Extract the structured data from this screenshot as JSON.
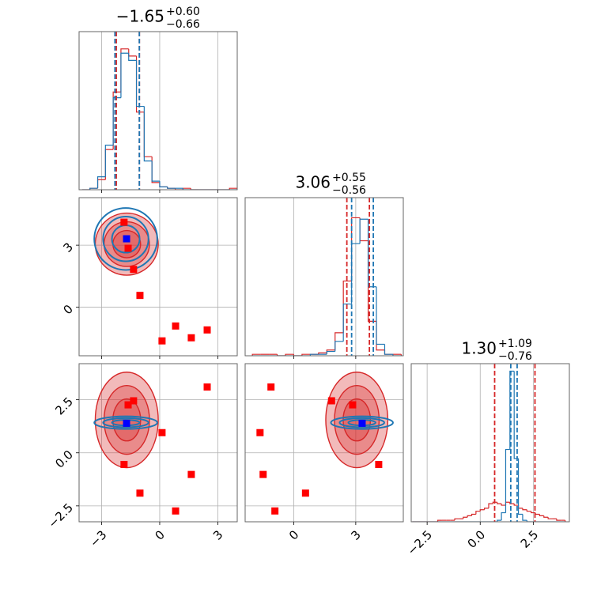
{
  "chart_data": {
    "type": "corner",
    "grid": true,
    "params": [
      {
        "title": {
          "value": "−1.65",
          "plus": "+0.60",
          "minus": "−0.66"
        },
        "lim": [
          -4.16,
          4.0
        ],
        "ticks": [
          {
            "value": -3,
            "label": "−3"
          },
          0,
          3
        ],
        "bins": [
          -4,
          -3.6,
          -3.2,
          -2.8,
          -2.4,
          -2,
          -1.6,
          -1.2,
          -0.8,
          -0.4,
          0,
          0.4,
          0.8,
          1.2,
          1.6,
          2,
          2.4,
          2.8,
          3.2,
          3.6,
          4
        ],
        "hist_ylim": [
          0,
          110
        ]
      },
      {
        "title": {
          "value": "3.06",
          "plus": "+0.55",
          "minus": "−0.56"
        },
        "lim": [
          -2.35,
          5.3
        ],
        "ticks": [
          0,
          3
        ],
        "bins": [
          -2,
          -1.6,
          -1.2,
          -0.8,
          -0.4,
          0,
          0.4,
          0.8,
          1.2,
          1.6,
          2,
          2.4,
          2.8,
          3.2,
          3.6,
          4,
          4.4,
          4.8,
          5.2
        ],
        "hist_ylim": [
          0,
          110
        ]
      },
      {
        "title": {
          "value": "1.30",
          "plus": "+1.09",
          "minus": "−0.76"
        },
        "lim": [
          -3.25,
          4.2
        ],
        "ticks": [
          {
            "value": -2.5,
            "label": "−2.5"
          },
          {
            "value": 0,
            "label": "0.0"
          },
          {
            "value": 2.5,
            "label": "2.5"
          }
        ],
        "bins": [
          -3.2,
          -3,
          -2.8,
          -2.6,
          -2.4,
          -2.2,
          -2,
          -1.8,
          -1.6,
          -1.4,
          -1.2,
          -1,
          -0.8,
          -0.6,
          -0.4,
          -0.2,
          0,
          0.2,
          0.4,
          0.6,
          0.8,
          1,
          1.2,
          1.4,
          1.6,
          1.8,
          2,
          2.2,
          2.4,
          2.6,
          2.8,
          3,
          3.2,
          3.4,
          3.6,
          3.8,
          4
        ],
        "hist_ylim": [
          0,
          105
        ]
      }
    ],
    "series": [
      {
        "color": "#d62728",
        "filled": true,
        "hist": [
          [
            0,
            1,
            7,
            28,
            68,
            98,
            93,
            54,
            23,
            5,
            2,
            1,
            0,
            1,
            0,
            0,
            0,
            0,
            0,
            1
          ],
          [
            1,
            1,
            1,
            0,
            1,
            0,
            1,
            1,
            2,
            4,
            16,
            52,
            96,
            80,
            24,
            4,
            1,
            1
          ],
          [
            0,
            0,
            0,
            0,
            0,
            0,
            1,
            1,
            1,
            1,
            2,
            2,
            3,
            4,
            5,
            7,
            8,
            9,
            12,
            13,
            12,
            11,
            13,
            12,
            11,
            9,
            8,
            7,
            6,
            5,
            4,
            3,
            2,
            2,
            1,
            1
          ]
        ],
        "quantiles": [
          [
            -2.24,
            -1.05
          ],
          [
            2.57,
            3.66
          ],
          [
            0.68,
            2.58
          ]
        ],
        "mean": [
          -1.7,
          3.05,
          1.55
        ],
        "std": [
          0.65,
          0.6,
          0.9
        ]
      },
      {
        "color": "#1f77b4",
        "filled": false,
        "hist": [
          [
            0,
            1,
            9,
            31,
            64,
            95,
            90,
            58,
            20,
            6,
            2,
            1,
            1,
            0,
            0,
            0,
            0,
            0,
            0,
            0
          ],
          [
            0,
            0,
            0,
            0,
            0,
            0,
            0,
            1,
            1,
            3,
            10,
            36,
            78,
            95,
            48,
            8,
            1,
            0
          ],
          [
            0,
            0,
            0,
            0,
            0,
            0,
            0,
            0,
            0,
            0,
            0,
            0,
            0,
            0,
            0,
            0,
            0,
            0,
            0,
            0,
            1,
            6,
            48,
            100,
            42,
            5,
            1,
            0,
            0,
            0,
            0,
            0,
            0,
            0,
            0,
            0
          ]
        ],
        "quantiles": [
          [
            -2.31,
            -1.05
          ],
          [
            2.8,
            3.85
          ],
          [
            1.44,
            1.74
          ]
        ],
        "mean": [
          -1.75,
          3.3,
          1.42
        ],
        "std": [
          0.65,
          0.6,
          0.12
        ]
      }
    ],
    "markers": [
      {
        "color": "#ff0000",
        "values": [
          [
            2.45,
            -1.1,
            3.1
          ],
          [
            -1.63,
            2.85,
            2.26
          ],
          [
            -1.35,
            1.83,
            2.45
          ],
          [
            0.12,
            -1.63,
            0.95
          ],
          [
            -1.84,
            4.11,
            -0.55
          ],
          [
            -1.02,
            0.57,
            -1.9
          ],
          [
            0.82,
            -0.91,
            -2.74
          ],
          [
            1.63,
            -1.48,
            -1.02
          ]
        ]
      },
      {
        "color": "#0000ff",
        "values": [
          [
            -1.71,
            3.31,
            1.39
          ]
        ]
      }
    ]
  }
}
